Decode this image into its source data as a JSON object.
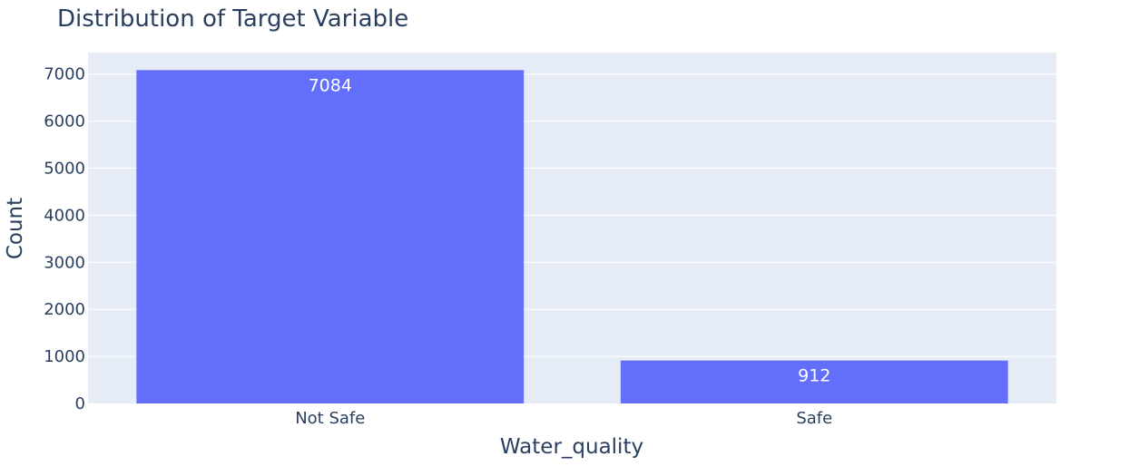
{
  "chart_data": {
    "type": "bar",
    "title": "Distribution of Target Variable",
    "xlabel": "Water_quality",
    "ylabel": "Count",
    "categories": [
      "Not Safe",
      "Safe"
    ],
    "values": [
      7084,
      912
    ],
    "value_labels": [
      "7084",
      "912"
    ],
    "yticks": [
      0,
      1000,
      2000,
      3000,
      4000,
      5000,
      6000,
      7000
    ],
    "ytick_labels": [
      "0",
      "1000",
      "2000",
      "3000",
      "4000",
      "5000",
      "6000",
      "7000"
    ],
    "ylim": [
      0,
      7457
    ],
    "grid": true,
    "legend": "none",
    "colors": {
      "bar": "#636efa",
      "plot_background": "#e5ecf6",
      "grid": "#ffffff",
      "text": "#2a3f5f",
      "data_label": "#ffffff"
    }
  }
}
